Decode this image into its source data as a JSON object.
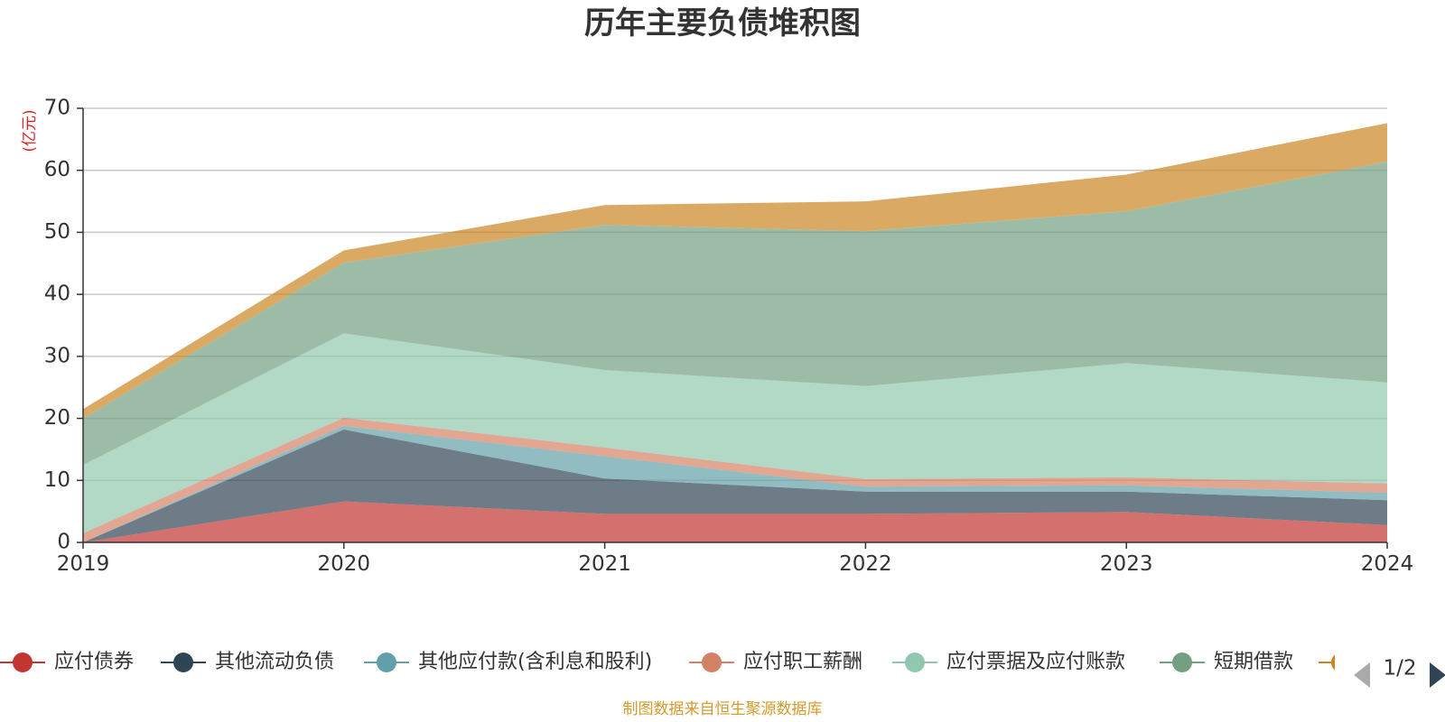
{
  "chart_data": {
    "type": "area",
    "stacked": true,
    "title": "历年主要负债堆积图",
    "y_unit": "(亿元)",
    "x": [
      "2019",
      "2020",
      "2021",
      "2022",
      "2023",
      "2024"
    ],
    "ylim": [
      0,
      70
    ],
    "y_ticks": [
      "0",
      "10",
      "20",
      "30",
      "40",
      "50",
      "60",
      "70"
    ],
    "grid": true,
    "legend_position": "bottom",
    "series": [
      {
        "name": "应付债券",
        "color": "#c23531",
        "values": [
          0,
          6.6,
          4.6,
          4.6,
          4.9,
          2.8
        ]
      },
      {
        "name": "其他流动负债",
        "color": "#2f4554",
        "values": [
          0,
          11.6,
          5.7,
          3.6,
          3.3,
          4.0
        ]
      },
      {
        "name": "其他应付款(含利息和股利)",
        "color": "#61a0a8",
        "values": [
          0,
          0.6,
          3.6,
          0.8,
          1.0,
          1.2
        ]
      },
      {
        "name": "应付职工薪酬",
        "color": "#d48265",
        "values": [
          1.5,
          1.3,
          1.4,
          1.2,
          1.3,
          1.5
        ]
      },
      {
        "name": "应付票据及应付账款",
        "color": "#91c7ae",
        "values": [
          11.0,
          13.6,
          12.5,
          15.0,
          18.4,
          16.3
        ]
      },
      {
        "name": "短期借款",
        "color": "#749f83",
        "values": [
          7.5,
          11.4,
          23.4,
          25.0,
          24.5,
          35.6
        ]
      },
      {
        "name": "",
        "color": "#ca8622",
        "values": [
          1.5,
          2.0,
          3.2,
          4.8,
          5.9,
          6.2
        ]
      }
    ]
  },
  "legend_page": "1/2",
  "source": "制图数据来自恒生聚源数据库"
}
